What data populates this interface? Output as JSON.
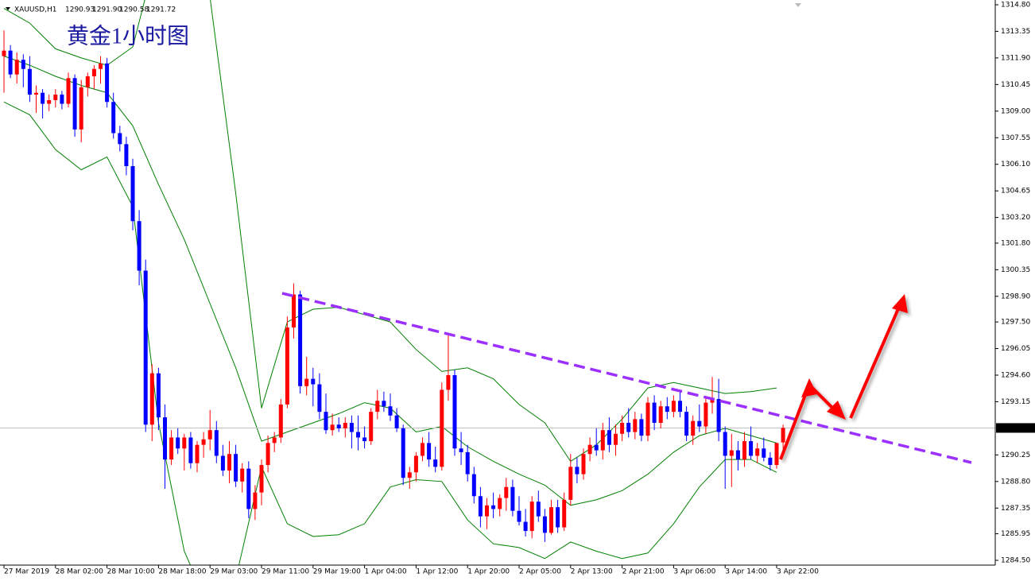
{
  "chart_data": {
    "type": "candlestick",
    "symbol": "XAUUSD,H1",
    "header_ohlc": [
      {
        "value": 1290.93,
        "label": "1290.93"
      },
      {
        "value": 1291.9,
        "label": "1291.90"
      },
      {
        "value": 1290.58,
        "label": "1290.58"
      },
      {
        "value": 1291.72,
        "label": "1291.72"
      }
    ],
    "title": "黄金1小时图",
    "up_color": "#ff0000",
    "down_color": "#0000ff",
    "categories": [
      "27 Mar 2019",
      null,
      null,
      null,
      null,
      null,
      null,
      null,
      "28 Mar 02:00",
      null,
      null,
      null,
      null,
      null,
      null,
      null,
      "28 Mar 10:00",
      null,
      null,
      null,
      null,
      null,
      null,
      null,
      "28 Mar 18:00",
      null,
      null,
      null,
      null,
      null,
      null,
      null,
      "29 Mar 03:00",
      null,
      null,
      null,
      null,
      null,
      null,
      null,
      "29 Mar 11:00",
      null,
      null,
      null,
      null,
      null,
      null,
      null,
      "29 Mar 19:00",
      null,
      null,
      null,
      null,
      null,
      null,
      null,
      "1 Apr 04:00",
      null,
      null,
      null,
      null,
      null,
      null,
      null,
      "1 Apr 12:00",
      null,
      null,
      null,
      null,
      null,
      null,
      null,
      "1 Apr 20:00",
      null,
      null,
      null,
      null,
      null,
      null,
      null,
      "2 Apr 05:00",
      null,
      null,
      null,
      null,
      null,
      null,
      null,
      "2 Apr 13:00",
      null,
      null,
      null,
      null,
      null,
      null,
      null,
      "2 Apr 21:00",
      null,
      null,
      null,
      null,
      null,
      null,
      null,
      "3 Apr 06:00",
      null,
      null,
      null,
      null,
      null,
      null,
      null,
      "3 Apr 14:00",
      null,
      null,
      null,
      null,
      null,
      null,
      null,
      "3 Apr 22:00",
      null
    ],
    "ohlc": [
      [
        1312.0,
        1313.4,
        1310.0,
        1312.3
      ],
      [
        1312.3,
        1312.6,
        1310.8,
        1311.0
      ],
      [
        1311.0,
        1312.2,
        1310.5,
        1311.8
      ],
      [
        1311.8,
        1312.1,
        1310.3,
        1311.3
      ],
      [
        1311.3,
        1312.0,
        1309.5,
        1309.9
      ],
      [
        1309.9,
        1310.4,
        1308.9,
        1310.0
      ],
      [
        1310.0,
        1310.2,
        1308.6,
        1309.4
      ],
      [
        1309.4,
        1309.9,
        1309.0,
        1309.6
      ],
      [
        1309.6,
        1310.2,
        1309.2,
        1309.9
      ],
      [
        1309.9,
        1310.1,
        1309.1,
        1309.4
      ],
      [
        1309.4,
        1311.1,
        1309.2,
        1310.8
      ],
      [
        1310.8,
        1311.0,
        1307.6,
        1308.0
      ],
      [
        1308.0,
        1310.7,
        1307.3,
        1310.3
      ],
      [
        1310.3,
        1311.1,
        1309.8,
        1310.9
      ],
      [
        1310.9,
        1311.5,
        1310.2,
        1311.3
      ],
      [
        1311.3,
        1312.0,
        1310.5,
        1311.6
      ],
      [
        1311.6,
        1311.9,
        1309.2,
        1309.5
      ],
      [
        1309.5,
        1310.0,
        1307.5,
        1307.8
      ],
      [
        1307.8,
        1308.2,
        1306.8,
        1307.2
      ],
      [
        1307.2,
        1307.6,
        1305.5,
        1306.0
      ],
      [
        1306.0,
        1306.4,
        1302.5,
        1303.0
      ],
      [
        1303.0,
        1303.6,
        1299.5,
        1300.3
      ],
      [
        1300.3,
        1300.9,
        1291.5,
        1291.9
      ],
      [
        1291.9,
        1295.2,
        1291.0,
        1294.7
      ],
      [
        1294.7,
        1295.0,
        1291.6,
        1292.3
      ],
      [
        1292.3,
        1293.0,
        1288.4,
        1290.0
      ],
      [
        1290.0,
        1291.6,
        1289.7,
        1291.2
      ],
      [
        1291.2,
        1291.7,
        1290.3,
        1290.6
      ],
      [
        1290.6,
        1291.4,
        1289.4,
        1291.2
      ],
      [
        1291.2,
        1291.5,
        1289.5,
        1289.8
      ],
      [
        1289.8,
        1291.0,
        1289.3,
        1290.8
      ],
      [
        1290.8,
        1291.5,
        1290.1,
        1291.1
      ],
      [
        1291.1,
        1292.7,
        1290.5,
        1291.6
      ],
      [
        1291.6,
        1292.1,
        1289.8,
        1290.2
      ],
      [
        1290.2,
        1290.8,
        1289.1,
        1289.4
      ],
      [
        1289.4,
        1291.0,
        1288.7,
        1290.3
      ],
      [
        1290.3,
        1290.8,
        1288.5,
        1288.8
      ],
      [
        1288.8,
        1289.8,
        1288.2,
        1289.5
      ],
      [
        1289.5,
        1289.9,
        1286.8,
        1287.3
      ],
      [
        1287.3,
        1288.6,
        1286.7,
        1288.2
      ],
      [
        1288.2,
        1290.0,
        1287.5,
        1289.7
      ],
      [
        1289.7,
        1291.3,
        1289.3,
        1290.9
      ],
      [
        1290.9,
        1291.5,
        1290.4,
        1291.2
      ],
      [
        1291.2,
        1293.3,
        1290.9,
        1293.0
      ],
      [
        1293.0,
        1297.8,
        1292.8,
        1297.2
      ],
      [
        1297.2,
        1299.6,
        1296.6,
        1299.0
      ],
      [
        1299.0,
        1299.2,
        1293.6,
        1294.0
      ],
      [
        1294.0,
        1295.6,
        1293.5,
        1294.4
      ],
      [
        1294.4,
        1295.0,
        1292.9,
        1294.1
      ],
      [
        1294.1,
        1294.7,
        1292.2,
        1292.6
      ],
      [
        1292.6,
        1293.6,
        1291.4,
        1291.6
      ],
      [
        1291.6,
        1292.5,
        1291.3,
        1291.9
      ],
      [
        1291.9,
        1292.3,
        1291.5,
        1291.7
      ],
      [
        1291.7,
        1292.3,
        1291.2,
        1292.0
      ],
      [
        1292.0,
        1292.4,
        1290.6,
        1291.5
      ],
      [
        1291.5,
        1292.4,
        1290.5,
        1291.2
      ],
      [
        1291.2,
        1291.8,
        1290.6,
        1291.0
      ],
      [
        1291.0,
        1292.8,
        1290.8,
        1292.6
      ],
      [
        1292.6,
        1293.8,
        1292.2,
        1293.2
      ],
      [
        1293.2,
        1293.7,
        1292.6,
        1292.9
      ],
      [
        1292.9,
        1293.6,
        1292.1,
        1292.4
      ],
      [
        1292.4,
        1292.8,
        1291.5,
        1291.7
      ],
      [
        1291.7,
        1291.9,
        1288.6,
        1289.0
      ],
      [
        1289.0,
        1289.6,
        1288.4,
        1289.3
      ],
      [
        1289.3,
        1290.4,
        1288.8,
        1290.2
      ],
      [
        1290.2,
        1291.2,
        1289.9,
        1290.9
      ],
      [
        1290.9,
        1291.5,
        1289.6,
        1290.0
      ],
      [
        1290.0,
        1290.7,
        1289.3,
        1289.6
      ],
      [
        1289.6,
        1294.2,
        1289.4,
        1293.8
      ],
      [
        1293.8,
        1296.8,
        1293.2,
        1294.6
      ],
      [
        1294.6,
        1294.9,
        1290.2,
        1290.6
      ],
      [
        1290.6,
        1291.5,
        1289.7,
        1290.4
      ],
      [
        1290.4,
        1290.8,
        1288.8,
        1289.2
      ],
      [
        1289.2,
        1289.6,
        1287.6,
        1288.0
      ],
      [
        1288.0,
        1288.5,
        1286.3,
        1286.9
      ],
      [
        1286.9,
        1287.9,
        1286.2,
        1287.5
      ],
      [
        1287.5,
        1288.2,
        1286.8,
        1287.3
      ],
      [
        1287.3,
        1288.1,
        1286.9,
        1287.9
      ],
      [
        1287.9,
        1289.0,
        1287.2,
        1288.5
      ],
      [
        1288.5,
        1288.9,
        1286.9,
        1287.2
      ],
      [
        1287.2,
        1288.0,
        1286.4,
        1286.6
      ],
      [
        1286.6,
        1287.3,
        1285.8,
        1286.1
      ],
      [
        1286.1,
        1288.0,
        1285.7,
        1287.7
      ],
      [
        1287.7,
        1288.3,
        1286.6,
        1286.9
      ],
      [
        1286.9,
        1287.3,
        1285.5,
        1286.0
      ],
      [
        1286.0,
        1287.8,
        1285.9,
        1287.4
      ],
      [
        1287.4,
        1287.8,
        1286.0,
        1286.3
      ],
      [
        1286.3,
        1288.2,
        1286.1,
        1287.8
      ],
      [
        1287.8,
        1290.3,
        1287.5,
        1289.6
      ],
      [
        1289.6,
        1290.1,
        1288.7,
        1289.2
      ],
      [
        1289.2,
        1290.6,
        1288.9,
        1290.3
      ],
      [
        1290.3,
        1291.2,
        1289.9,
        1290.8
      ],
      [
        1290.8,
        1291.7,
        1290.2,
        1290.5
      ],
      [
        1290.5,
        1292.0,
        1290.0,
        1291.6
      ],
      [
        1291.6,
        1292.3,
        1290.4,
        1290.8
      ],
      [
        1290.8,
        1291.9,
        1290.2,
        1291.4
      ],
      [
        1291.4,
        1292.4,
        1291.0,
        1292.0
      ],
      [
        1292.0,
        1292.8,
        1291.2,
        1291.5
      ],
      [
        1291.5,
        1292.6,
        1291.1,
        1292.2
      ],
      [
        1292.2,
        1292.5,
        1291.0,
        1291.3
      ],
      [
        1291.3,
        1293.4,
        1291.0,
        1293.1
      ],
      [
        1293.1,
        1293.5,
        1291.6,
        1292.0
      ],
      [
        1292.0,
        1293.2,
        1291.7,
        1292.9
      ],
      [
        1292.9,
        1293.4,
        1292.2,
        1292.6
      ],
      [
        1292.6,
        1293.5,
        1292.3,
        1293.2
      ],
      [
        1293.2,
        1293.7,
        1292.3,
        1292.6
      ],
      [
        1292.6,
        1292.9,
        1291.0,
        1291.3
      ],
      [
        1291.3,
        1292.4,
        1290.8,
        1292.1
      ],
      [
        1292.1,
        1293.0,
        1291.5,
        1291.8
      ],
      [
        1291.8,
        1293.4,
        1291.4,
        1293.1
      ],
      [
        1293.1,
        1294.5,
        1292.5,
        1293.3
      ],
      [
        1293.3,
        1294.4,
        1291.0,
        1291.5
      ],
      [
        1291.5,
        1291.8,
        1288.4,
        1290.2
      ],
      [
        1290.2,
        1291.4,
        1288.5,
        1290.5
      ],
      [
        1290.5,
        1291.0,
        1289.4,
        1290.0
      ],
      [
        1290.0,
        1291.5,
        1289.6,
        1291.0
      ],
      [
        1291.0,
        1291.8,
        1290.0,
        1290.2
      ],
      [
        1290.2,
        1290.9,
        1289.8,
        1290.6
      ],
      [
        1290.6,
        1291.2,
        1289.9,
        1290.1
      ],
      [
        1290.1,
        1290.4,
        1289.4,
        1289.7
      ],
      [
        1289.7,
        1290.9,
        1289.5,
        1290.9
      ],
      [
        1290.93,
        1291.9,
        1290.58,
        1291.72
      ]
    ],
    "bollinger": {
      "color": "#008000",
      "upper": [
        1314.6,
        1313.8,
        1312.4,
        1311.9,
        1311.5,
        1312.5,
        1318.0,
        1319.0,
        1315.2,
        1304.5,
        1292.8,
        1297.5,
        1298.2,
        1298.3,
        1297.9,
        1297.5,
        1296.0,
        1294.8,
        1295.0,
        1294.4,
        1293.0,
        1292.0,
        1289.9,
        1290.8,
        1292.2,
        1293.9,
        1294.2,
        1293.9,
        1293.6,
        1293.7,
        1293.9
      ],
      "middle": [
        1312.0,
        1311.5,
        1310.9,
        1310.4,
        1310.0,
        1308.2,
        1305.0,
        1302.0,
        1298.5,
        1295.0,
        1291.0,
        1291.5,
        1292.0,
        1292.5,
        1293.1,
        1292.8,
        1291.5,
        1291.8,
        1290.7,
        1289.9,
        1289.2,
        1288.6,
        1287.5,
        1287.8,
        1288.3,
        1289.2,
        1290.4,
        1291.3,
        1291.7,
        1291.3,
        1290.9
      ],
      "lower": [
        1309.5,
        1308.8,
        1306.9,
        1305.8,
        1306.5,
        1303.8,
        1292.0,
        1285.0,
        1281.8,
        1283.5,
        1289.6,
        1286.5,
        1285.8,
        1285.9,
        1286.5,
        1288.5,
        1288.9,
        1288.8,
        1286.7,
        1285.4,
        1285.2,
        1284.6,
        1285.5,
        1285.0,
        1284.6,
        1284.9,
        1286.5,
        1288.5,
        1290.0,
        1290.0,
        1289.3
      ]
    },
    "current_price": {
      "value": 1291.72,
      "label": "1291.72"
    },
    "ylim": [
      1284.24,
      1315.06
    ],
    "yticks": [
      {
        "value": 1314.8,
        "label": "1314.80"
      },
      {
        "value": 1313.35,
        "label": "1313.35"
      },
      {
        "value": 1311.9,
        "label": "1311.90"
      },
      {
        "value": 1310.45,
        "label": "1310.45"
      },
      {
        "value": 1309,
        "label": "1309.00"
      },
      {
        "value": 1307.55,
        "label": "1307.55"
      },
      {
        "value": 1306.1,
        "label": "1306.10"
      },
      {
        "value": 1304.65,
        "label": "1304.65"
      },
      {
        "value": 1303.2,
        "label": "1303.20"
      },
      {
        "value": 1301.8,
        "label": "1301.80"
      },
      {
        "value": 1300.35,
        "label": "1300.35"
      },
      {
        "value": 1298.9,
        "label": "1298.90"
      },
      {
        "value": 1297.5,
        "label": "1297.50"
      },
      {
        "value": 1296.05,
        "label": "1296.05"
      },
      {
        "value": 1294.6,
        "label": "1294.60"
      },
      {
        "value": 1293.15,
        "label": "1293.15"
      },
      {
        "value": 1290.25,
        "label": "1290.25"
      },
      {
        "value": 1288.8,
        "label": "1288.80"
      },
      {
        "value": 1287.35,
        "label": "1287.35"
      },
      {
        "value": 1285.95,
        "label": "1285.95"
      },
      {
        "value": 1284.5,
        "label": "1284.50"
      }
    ]
  }
}
